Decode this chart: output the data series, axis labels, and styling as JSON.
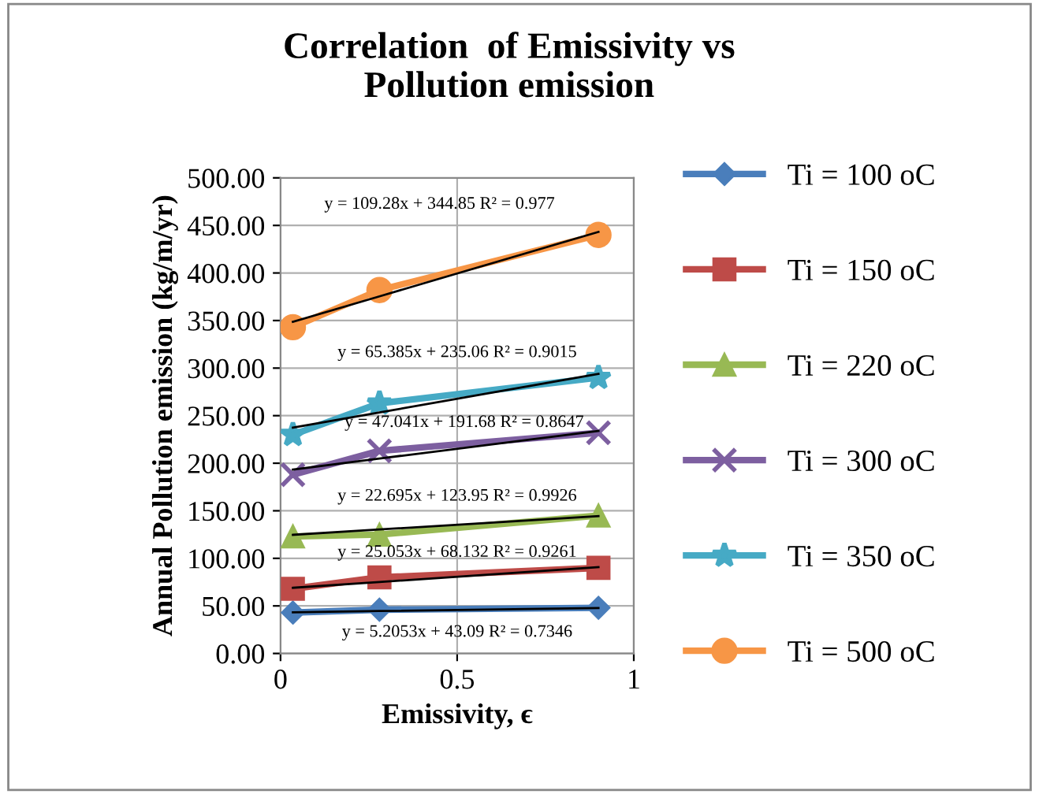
{
  "chart_data": {
    "type": "line",
    "title": "Correlation  of Emissivity vs\nPollution emission",
    "xlabel": "Emissivity, ϵ",
    "ylabel": "Annual Pollution emission (kg/m/yr)",
    "x": [
      0.035,
      0.28,
      0.9
    ],
    "series": [
      {
        "name": "Ti = 100 oC",
        "color": "#4a7ebb",
        "marker": "diamond",
        "values": [
          43,
          46,
          48
        ]
      },
      {
        "name": "Ti = 150 oC",
        "color": "#be4b48",
        "marker": "square",
        "values": [
          68,
          80,
          90
        ]
      },
      {
        "name": "Ti = 220 oC",
        "color": "#98b954",
        "marker": "triangle",
        "values": [
          123,
          125,
          145
        ]
      },
      {
        "name": "Ti = 300 oC",
        "color": "#7d5fa0",
        "marker": "cross",
        "values": [
          188,
          213,
          232
        ]
      },
      {
        "name": "Ti = 350 oC",
        "color": "#46aac5",
        "marker": "star",
        "values": [
          230,
          263,
          290
        ]
      },
      {
        "name": "Ti = 500 oC",
        "color": "#f79646",
        "marker": "circle",
        "values": [
          343,
          382,
          440
        ]
      },
      {
        "type": "line",
        "color": "#000000",
        "marker": "none",
        "values": [
          43.3,
          44.6,
          47.8
        ]
      },
      {
        "type": "line",
        "color": "#000000",
        "marker": "none",
        "values": [
          69.0,
          75.1,
          90.7
        ]
      },
      {
        "type": "line",
        "color": "#000000",
        "marker": "none",
        "values": [
          124.7,
          130.3,
          144.4
        ]
      },
      {
        "type": "line",
        "color": "#000000",
        "marker": "none",
        "values": [
          193.3,
          204.9,
          234.0
        ]
      },
      {
        "type": "line",
        "color": "#000000",
        "marker": "none",
        "values": [
          237.4,
          253.4,
          293.9
        ]
      },
      {
        "type": "line",
        "color": "#000000",
        "marker": "none",
        "values": [
          348.7,
          375.4,
          443.2
        ]
      }
    ],
    "annotations": [
      "y = 5.2053x + 43.09 R² = 0.7346",
      "y = 25.053x + 68.132 R² = 0.9261",
      "y = 22.695x + 123.95 R² = 0.9926",
      "y = 47.041x + 191.68 R² = 0.8647",
      "y = 65.385x + 235.06 R² = 0.9015",
      "y = 109.28x + 344.85 R² = 0.977"
    ],
    "xlim": [
      0,
      1
    ],
    "xticks": [
      0,
      0.5,
      1
    ],
    "ylim": [
      0,
      500
    ],
    "yticks": [
      {
        "value": 0,
        "label": "0.00"
      },
      {
        "value": 50,
        "label": "50.00"
      },
      {
        "value": 100,
        "label": "100.00"
      },
      {
        "value": 150,
        "label": "150.00"
      },
      {
        "value": 200,
        "label": "200.00"
      },
      {
        "value": 250,
        "label": "250.00"
      },
      {
        "value": 300,
        "label": "300.00"
      },
      {
        "value": 350,
        "label": "350.00"
      },
      {
        "value": 400,
        "label": "400.00"
      },
      {
        "value": 450,
        "label": "450.00"
      },
      {
        "value": 500,
        "label": "500.00"
      }
    ],
    "grid": true,
    "legend": "right"
  }
}
